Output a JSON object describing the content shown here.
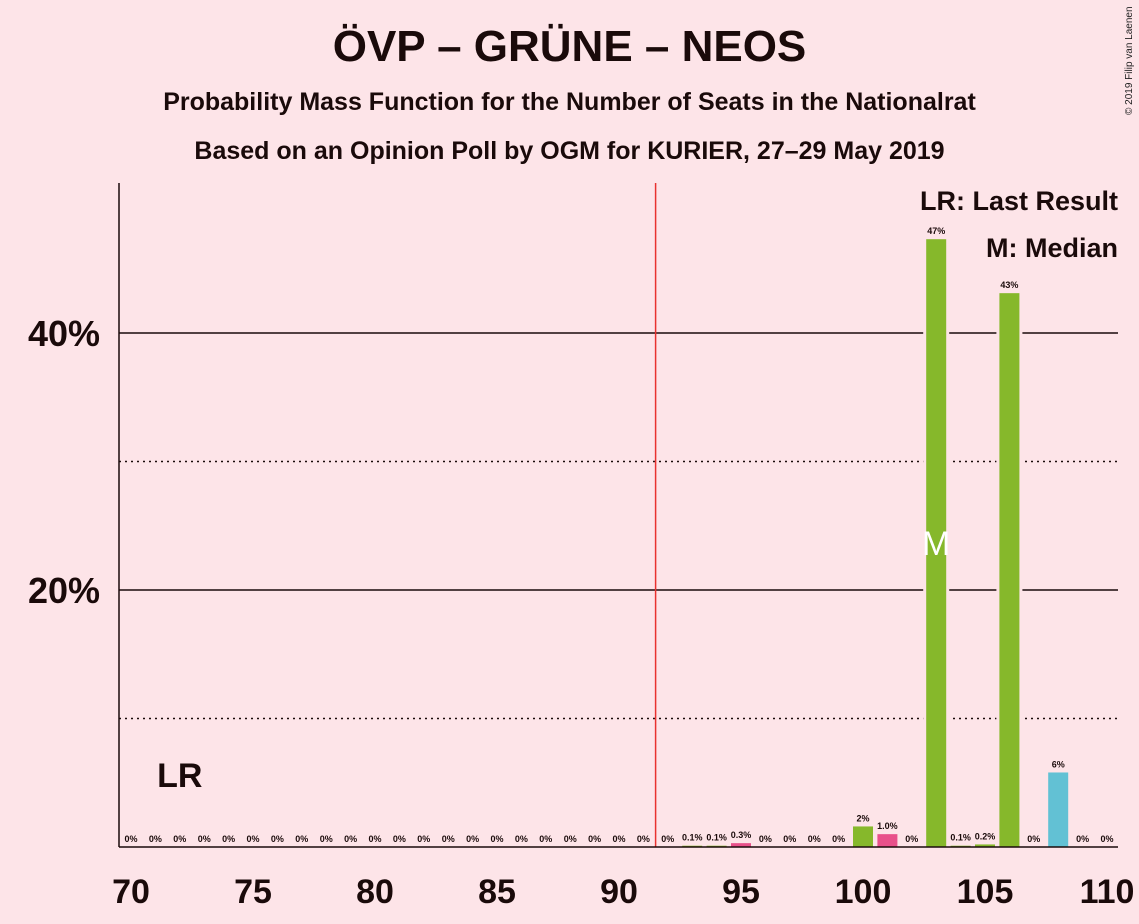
{
  "title": "ÖVP – GRÜNE – NEOS",
  "subtitle1": "Probability Mass Function for the Number of Seats in the Nationalrat",
  "subtitle2": "Based on an Opinion Poll by OGM for KURIER, 27–29 May 2019",
  "copyright": "© 2019 Filip van Laenen",
  "legend": {
    "last_result": "LR: Last Result",
    "median": "M: Median"
  },
  "markers": {
    "lr_label": "LR",
    "lr_seat": 72,
    "median_label": "M",
    "median_seat": 103,
    "majority_seat": 91.5
  },
  "colors": {
    "background": "#fde4e8",
    "main_bar": "#86b82b",
    "pink_bar": "#e8508a",
    "blue_bar": "#62c1d4",
    "majority_line": "#e8312f"
  },
  "chart_data": {
    "type": "bar",
    "xlabel": "",
    "ylabel": "",
    "xlim": [
      70,
      110
    ],
    "ylim": [
      0,
      50
    ],
    "x_ticks": [
      70,
      75,
      80,
      85,
      90,
      95,
      100,
      105,
      110
    ],
    "y_ticks_solid": [
      20,
      40
    ],
    "y_ticks_dotted": [
      10,
      30
    ],
    "y_tick_labels": [
      "20%",
      "40%"
    ],
    "grid": true,
    "legend_position": "top-right",
    "bars": [
      {
        "x": 70,
        "value": 0,
        "label": "0%",
        "color": "main"
      },
      {
        "x": 71,
        "value": 0,
        "label": "0%",
        "color": "main"
      },
      {
        "x": 72,
        "value": 0,
        "label": "0%",
        "color": "main"
      },
      {
        "x": 73,
        "value": 0,
        "label": "0%",
        "color": "main"
      },
      {
        "x": 74,
        "value": 0,
        "label": "0%",
        "color": "main"
      },
      {
        "x": 75,
        "value": 0,
        "label": "0%",
        "color": "main"
      },
      {
        "x": 76,
        "value": 0,
        "label": "0%",
        "color": "main"
      },
      {
        "x": 77,
        "value": 0,
        "label": "0%",
        "color": "main"
      },
      {
        "x": 78,
        "value": 0,
        "label": "0%",
        "color": "main"
      },
      {
        "x": 79,
        "value": 0,
        "label": "0%",
        "color": "main"
      },
      {
        "x": 80,
        "value": 0,
        "label": "0%",
        "color": "main"
      },
      {
        "x": 81,
        "value": 0,
        "label": "0%",
        "color": "main"
      },
      {
        "x": 82,
        "value": 0,
        "label": "0%",
        "color": "main"
      },
      {
        "x": 83,
        "value": 0,
        "label": "0%",
        "color": "main"
      },
      {
        "x": 84,
        "value": 0,
        "label": "0%",
        "color": "main"
      },
      {
        "x": 85,
        "value": 0,
        "label": "0%",
        "color": "main"
      },
      {
        "x": 86,
        "value": 0,
        "label": "0%",
        "color": "main"
      },
      {
        "x": 87,
        "value": 0,
        "label": "0%",
        "color": "main"
      },
      {
        "x": 88,
        "value": 0,
        "label": "0%",
        "color": "main"
      },
      {
        "x": 89,
        "value": 0,
        "label": "0%",
        "color": "main"
      },
      {
        "x": 90,
        "value": 0,
        "label": "0%",
        "color": "main"
      },
      {
        "x": 91,
        "value": 0,
        "label": "0%",
        "color": "main"
      },
      {
        "x": 92,
        "value": 0,
        "label": "0%",
        "color": "main"
      },
      {
        "x": 93,
        "value": 0.1,
        "label": "0.1%",
        "color": "main"
      },
      {
        "x": 94,
        "value": 0.1,
        "label": "0.1%",
        "color": "main"
      },
      {
        "x": 95,
        "value": 0.3,
        "label": "0.3%",
        "color": "pink"
      },
      {
        "x": 96,
        "value": 0,
        "label": "0%",
        "color": "main"
      },
      {
        "x": 97,
        "value": 0,
        "label": "0%",
        "color": "main"
      },
      {
        "x": 98,
        "value": 0,
        "label": "0%",
        "color": "main"
      },
      {
        "x": 99,
        "value": 0,
        "label": "0%",
        "color": "main"
      },
      {
        "x": 100,
        "value": 1.6,
        "label": "2%",
        "color": "main"
      },
      {
        "x": 101,
        "value": 1.0,
        "label": "1.0%",
        "color": "pink"
      },
      {
        "x": 102,
        "value": 0,
        "label": "0%",
        "color": "main"
      },
      {
        "x": 103,
        "value": 47.3,
        "label": "47%",
        "color": "main"
      },
      {
        "x": 104,
        "value": 0.1,
        "label": "0.1%",
        "color": "main"
      },
      {
        "x": 105,
        "value": 0.2,
        "label": "0.2%",
        "color": "main"
      },
      {
        "x": 106,
        "value": 43.1,
        "label": "43%",
        "color": "main"
      },
      {
        "x": 107,
        "value": 0,
        "label": "0%",
        "color": "main"
      },
      {
        "x": 108,
        "value": 5.8,
        "label": "6%",
        "color": "blue"
      },
      {
        "x": 109,
        "value": 0,
        "label": "0%",
        "color": "main"
      },
      {
        "x": 110,
        "value": 0,
        "label": "0%",
        "color": "main"
      }
    ]
  }
}
